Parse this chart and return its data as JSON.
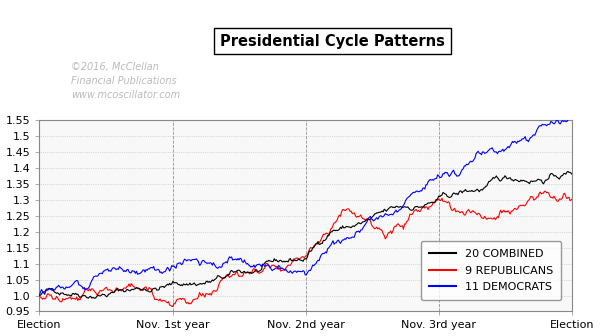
{
  "title": "Presidential Cycle Patterns",
  "watermark_line1": "©2016, McClellan",
  "watermark_line2": "Financial Publications",
  "watermark_line3": "www.mcoscillator.com",
  "xlim": [
    0,
    1
  ],
  "ylim": [
    0.95,
    1.55
  ],
  "yticks": [
    0.95,
    1.0,
    1.05,
    1.1,
    1.15,
    1.2,
    1.25,
    1.3,
    1.35,
    1.4,
    1.45,
    1.5,
    1.55
  ],
  "xtick_positions": [
    0.0,
    0.25,
    0.5,
    0.75,
    1.0
  ],
  "xtick_labels": [
    "Election",
    "Nov. 1st year",
    "Nov. 2nd year",
    "Nov. 3rd year",
    "Election"
  ],
  "vline_positions": [
    0.0,
    0.25,
    0.5,
    0.75,
    1.0
  ],
  "legend_labels": [
    "20 COMBINED",
    "9 REPUBLICANS",
    "11 DEMOCRATS"
  ],
  "legend_colors": [
    "black",
    "red",
    "blue"
  ],
  "combined_color": "black",
  "republican_color": "red",
  "democrat_color": "blue",
  "background_color": "#f8f8f8",
  "n_points": 500,
  "seed": 42
}
